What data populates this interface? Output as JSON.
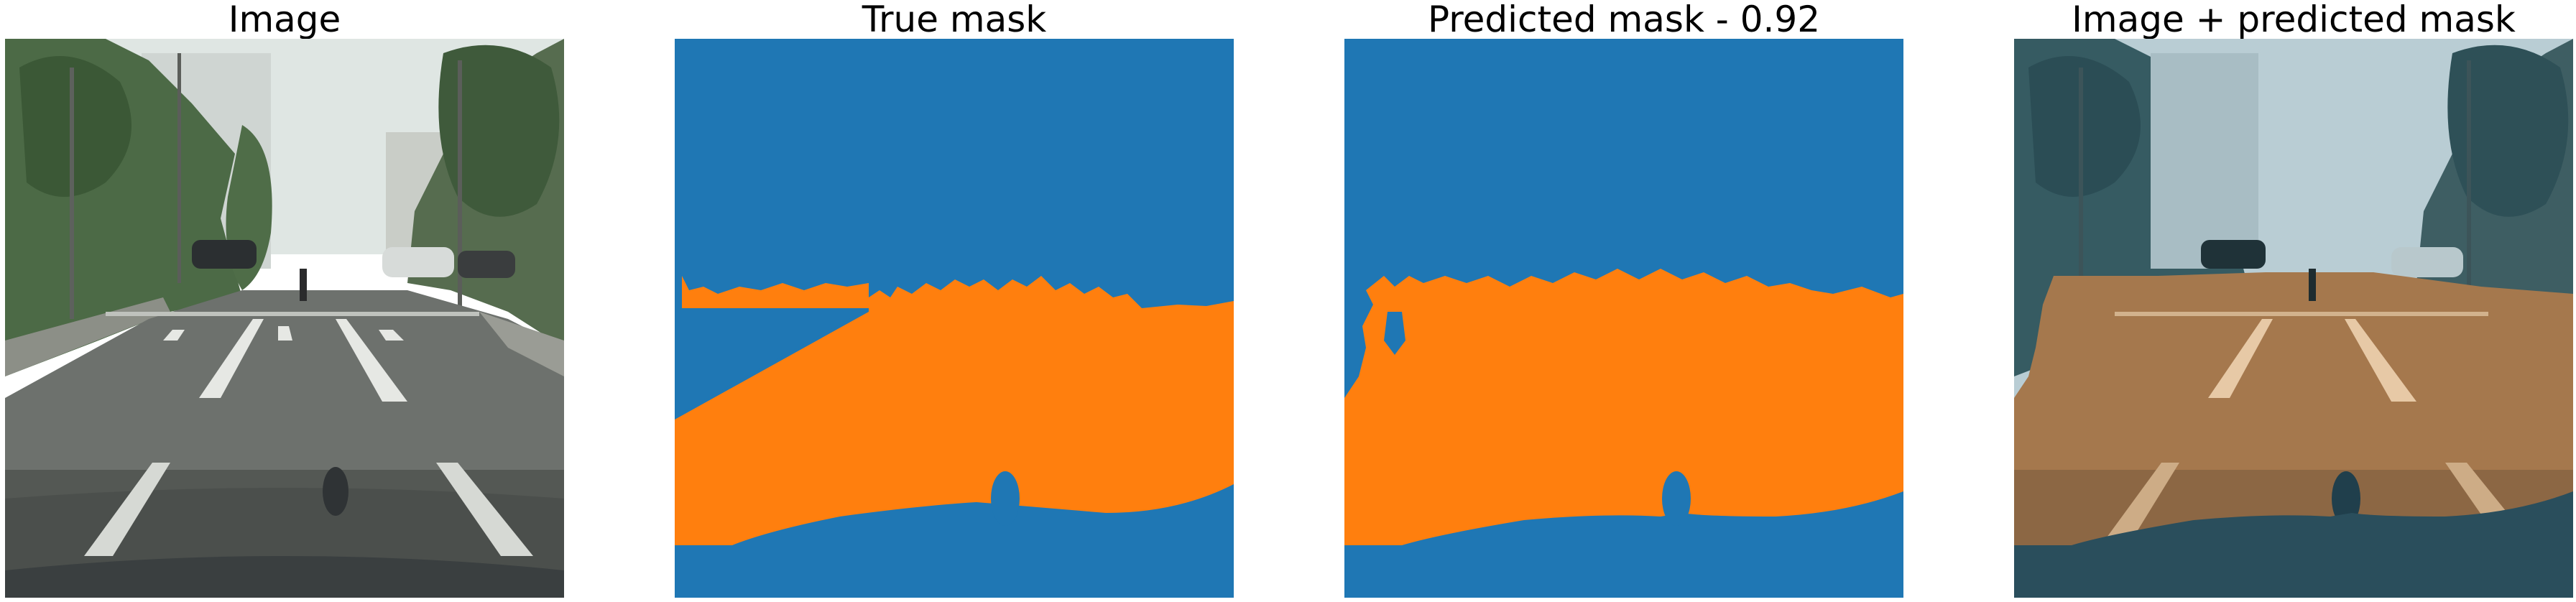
{
  "figure": {
    "panels": [
      {
        "id": "image",
        "title": "Image",
        "kind": "photo"
      },
      {
        "id": "true_mask",
        "title": "True mask",
        "kind": "mask"
      },
      {
        "id": "predicted_mask",
        "title": "Predicted mask - 0.92",
        "kind": "mask",
        "score": 0.92
      },
      {
        "id": "overlay",
        "title": "Image + predicted mask",
        "kind": "overlay"
      }
    ],
    "colors": {
      "background_class": "#1f77b4",
      "road_class": "#ff7f0e",
      "page_background": "#ffffff",
      "title_text": "#000000"
    },
    "mask_classes": [
      "background",
      "road"
    ]
  }
}
